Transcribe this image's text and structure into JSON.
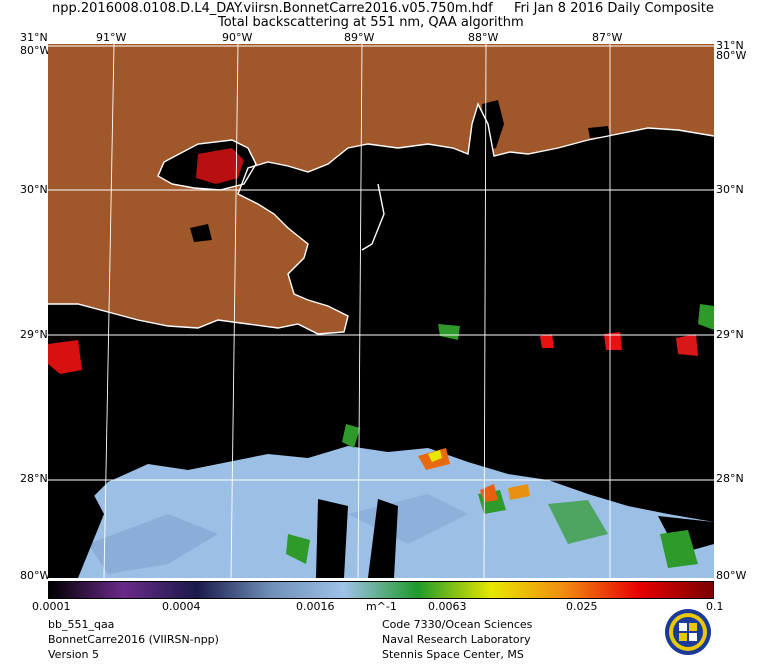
{
  "header": {
    "title_line1": "npp.2016008.0108.D.L4_DAY.viirsn.BonnetCarre2016.v05.750m.hdf",
    "date": "Fri Jan  8 2016 Daily Composite",
    "title_line2": "Total backscattering at 551 nm, QAA algorithm"
  },
  "map": {
    "lon_labels": [
      "91°W",
      "90°W",
      "89°W",
      "88°W",
      "87°W"
    ],
    "lat_labels": [
      "31°N",
      "30°N",
      "29°N",
      "28°N",
      "80°W"
    ],
    "corner_top": "80°W",
    "land_color": "#a0582a",
    "water_color": "#000000",
    "coast_color": "#ffffff",
    "grid_color": "#ffffff"
  },
  "colorbar": {
    "ticks": [
      "0.0001",
      "0.0004",
      "0.0016",
      "0.0063",
      "0.025",
      "0.1"
    ],
    "unit": "m^-1",
    "colors": [
      "#000000",
      "#6b2a8a",
      "#1a1a4a",
      "#6f8fb8",
      "#9fc2e8",
      "#1e9a2a",
      "#e8e800",
      "#f08a10",
      "#e80000",
      "#7a0000"
    ]
  },
  "footer": {
    "left": [
      "bb_551_qaa",
      "BonnetCarre2016 (VIIRSN-npp)",
      "Version 5"
    ],
    "right": [
      "Code 7330/Ocean Sciences",
      "Naval Research Laboratory",
      "Stennis Space Center, MS"
    ]
  }
}
